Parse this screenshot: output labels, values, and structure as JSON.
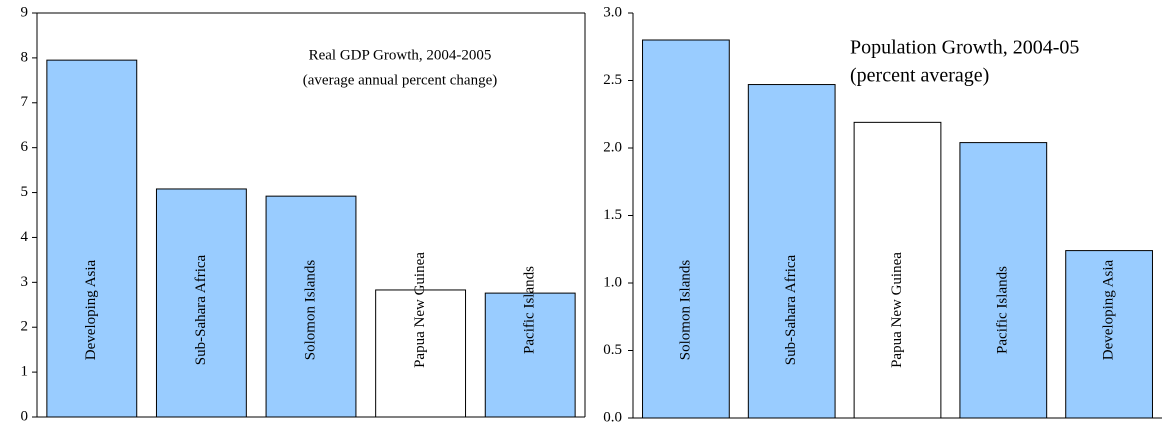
{
  "chart_data": [
    {
      "type": "bar",
      "title": "Real GDP Growth, 2004-2005",
      "subtitle": "(average annual percent change)",
      "categories": [
        "Developing Asia",
        "Sub-Sahara Africa",
        "Solomon Islands",
        "Papua New Guinea",
        "Pacific Islands"
      ],
      "values": [
        7.95,
        5.08,
        4.92,
        2.83,
        2.76
      ],
      "colors": [
        "#99ccff",
        "#99ccff",
        "#99ccff",
        "#ffffff",
        "#99ccff"
      ],
      "ylim": [
        0,
        9
      ],
      "yticks": [
        0,
        1,
        2,
        3,
        4,
        5,
        6,
        7,
        8,
        9
      ],
      "grid": false
    },
    {
      "type": "bar",
      "title": "Population Growth, 2004-05",
      "subtitle": "(percent average)",
      "categories": [
        "Solomon Islands",
        "Sub-Sahara Africa",
        "Papua New Guinea",
        "Pacific Islands",
        "Developing Asia"
      ],
      "values": [
        2.8,
        2.47,
        2.19,
        2.04,
        1.24
      ],
      "colors": [
        "#99ccff",
        "#99ccff",
        "#ffffff",
        "#99ccff",
        "#99ccff"
      ],
      "ylim": [
        0,
        3
      ],
      "yticks": [
        {
          "value": 0,
          "label": "0.0"
        },
        0.5,
        {
          "value": 1,
          "label": "1.0"
        },
        1.5,
        {
          "value": 2,
          "label": "2.0"
        },
        2.5,
        {
          "value": 3,
          "label": "3.0"
        }
      ],
      "grid": false
    }
  ]
}
